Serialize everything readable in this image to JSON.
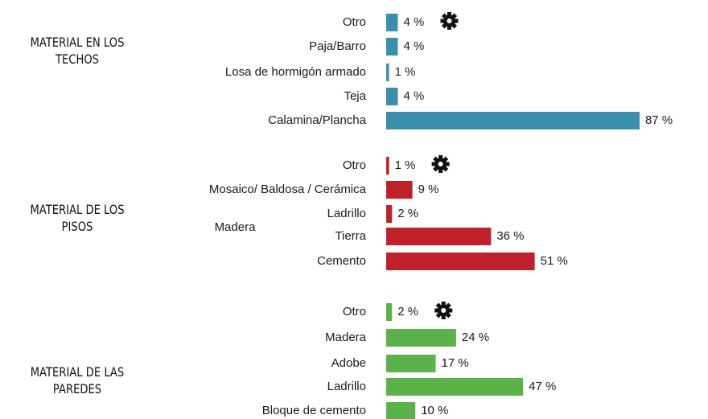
{
  "chart_data": [
    {
      "type": "bar",
      "title": "MATERIAL EN LOS TECHOS",
      "color": "#3a8fae",
      "categories": [
        "Otro",
        "Paja/Barro",
        "Losa de hormigón armado",
        "Teja",
        "Calamina/Plancha"
      ],
      "values": [
        4,
        4,
        1,
        4,
        87
      ],
      "value_labels": [
        "4 %",
        "4 %",
        "1 %",
        "4 %",
        "87 %"
      ]
    },
    {
      "type": "bar",
      "title": "MATERIAL DE LOS PISOS",
      "color": "#c0202a",
      "categories": [
        "Otro",
        "Mosaico/ Baldosa / Cerámica",
        "Ladrillo",
        "Tierra",
        "Cemento"
      ],
      "values": [
        1,
        9,
        2,
        36,
        51
      ],
      "value_labels": [
        "1 %",
        "9 %",
        "2 %",
        "36 %",
        "51 %"
      ],
      "annotation": "Madera"
    },
    {
      "type": "bar",
      "title": "MATERIAL DE LAS PAREDES",
      "color": "#5cb24a",
      "categories": [
        "Otro",
        "Madera",
        "Adobe",
        "Ladrillo",
        "Bloque de cemento"
      ],
      "values": [
        2,
        24,
        17,
        47,
        10
      ],
      "value_labels": [
        "2 %",
        "24 %",
        "17 %",
        "47 %",
        "10 %"
      ]
    }
  ]
}
